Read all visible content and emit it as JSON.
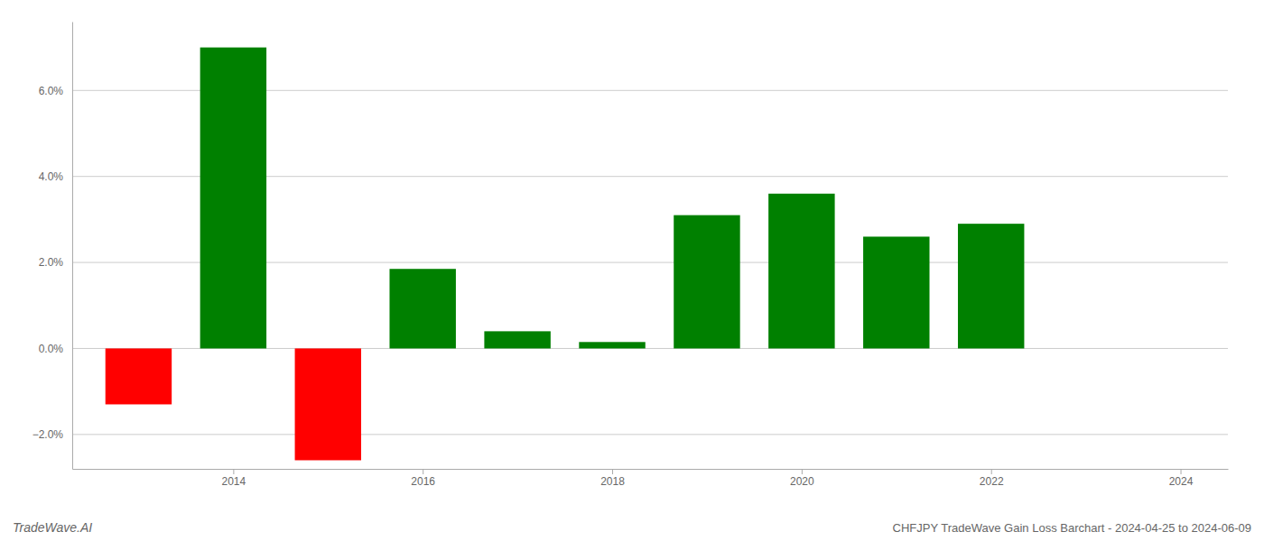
{
  "chart_data": {
    "type": "bar",
    "title": "CHFJPY TradeWave Gain Loss Barchart - 2024-04-25 to 2024-06-09",
    "annotations": [
      "TradeWave.AI"
    ],
    "x": [
      2013,
      2014,
      2015,
      2016,
      2017,
      2018,
      2019,
      2020,
      2021,
      2022,
      2023
    ],
    "values": [
      -1.3,
      7.0,
      -2.6,
      1.85,
      0.4,
      0.15,
      3.1,
      3.6,
      2.6,
      2.9,
      0.0
    ],
    "colors": [
      "#ff0000",
      "#008000",
      "#ff0000",
      "#008000",
      "#008000",
      "#008000",
      "#008000",
      "#008000",
      "#008000",
      "#008000",
      "#008000"
    ],
    "xlim": [
      2012.3,
      2024.5
    ],
    "xticks": [
      2014,
      2016,
      2018,
      2020,
      2022,
      2024
    ],
    "ylim": [
      -2.8,
      7.6
    ],
    "yticks": [
      {
        "value": -2.0,
        "label": "−2.0%"
      },
      {
        "value": 0.0,
        "label": "0.0%"
      },
      {
        "value": 2.0,
        "label": "2.0%"
      },
      {
        "value": 4.0,
        "label": "4.0%"
      },
      {
        "value": 6.0,
        "label": "6.0%"
      }
    ],
    "grid": true
  }
}
